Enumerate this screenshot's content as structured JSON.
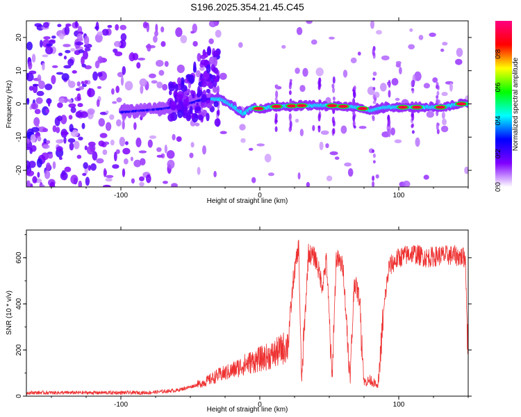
{
  "chart_data": [
    {
      "type": "heatmap",
      "title": "S196.2025.354.21.45.C45",
      "xlabel": "Height of straight line (km)",
      "ylabel": "Frequency (Hz)",
      "xlim": [
        -168,
        150
      ],
      "ylim": [
        -25,
        25
      ],
      "xticks": [
        -100,
        0,
        100
      ],
      "yticks": [
        -20,
        -10,
        0,
        10,
        20
      ],
      "colorbar": {
        "label": "Normalized spectral amplitude",
        "range": [
          0,
          1
        ],
        "ticks": [
          0.0,
          0.2,
          0.4,
          0.6,
          0.8
        ],
        "colormap": [
          "#ffffff",
          "#8000ff",
          "#0000ff",
          "#00ffff",
          "#00ff00",
          "#ffff00",
          "#ff0000",
          "#ff0080"
        ]
      },
      "ridge": [
        {
          "x": -100,
          "y": -2.5
        },
        {
          "x": -70,
          "y": -1.5
        },
        {
          "x": -55,
          "y": -0.5
        },
        {
          "x": -40,
          "y": 1.5
        },
        {
          "x": -28,
          "y": 1.5
        },
        {
          "x": -20,
          "y": -0.5
        },
        {
          "x": -12,
          "y": -3.0
        },
        {
          "x": -5,
          "y": -1.0
        },
        {
          "x": 0,
          "y": -1.5
        },
        {
          "x": 10,
          "y": -0.8
        },
        {
          "x": 30,
          "y": -0.5
        },
        {
          "x": 50,
          "y": -0.5
        },
        {
          "x": 70,
          "y": -1.0
        },
        {
          "x": 80,
          "y": -2.0
        },
        {
          "x": 90,
          "y": -1.0
        },
        {
          "x": 110,
          "y": -1.0
        },
        {
          "x": 130,
          "y": -1.0
        },
        {
          "x": 145,
          "y": 0.0
        }
      ],
      "ridge_peaks": [
        -1,
        12,
        23,
        30,
        52,
        60,
        74,
        103,
        113,
        130,
        145
      ],
      "spikes": [
        -42,
        -30,
        12,
        22,
        43,
        53,
        68,
        82,
        93,
        110,
        128
      ]
    },
    {
      "type": "line",
      "xlabel": "Height of straight line (km)",
      "ylabel": "SNR (10 * v/v)",
      "xlim": [
        -168,
        150
      ],
      "ylim": [
        0,
        720
      ],
      "xticks": [
        -100,
        0,
        100
      ],
      "yticks": [
        0,
        200,
        400,
        600
      ],
      "series": [
        {
          "name": "SNR",
          "color": "#ee3030",
          "x": [
            -168,
            -140,
            -120,
            -100,
            -80,
            -60,
            -50,
            -40,
            -30,
            -20,
            -10,
            0,
            10,
            20,
            23,
            24,
            28,
            30,
            35,
            40,
            45,
            48,
            52,
            55,
            60,
            65,
            68,
            72,
            75,
            80,
            85,
            90,
            93,
            100,
            110,
            120,
            130,
            140,
            148,
            150
          ],
          "y": [
            15,
            15,
            15,
            15,
            15,
            25,
            40,
            60,
            90,
            110,
            140,
            160,
            180,
            220,
            420,
            500,
            650,
            60,
            620,
            600,
            480,
            590,
            70,
            600,
            560,
            70,
            500,
            420,
            60,
            70,
            40,
            420,
            560,
            600,
            620,
            600,
            610,
            610,
            600,
            140
          ]
        }
      ]
    }
  ]
}
